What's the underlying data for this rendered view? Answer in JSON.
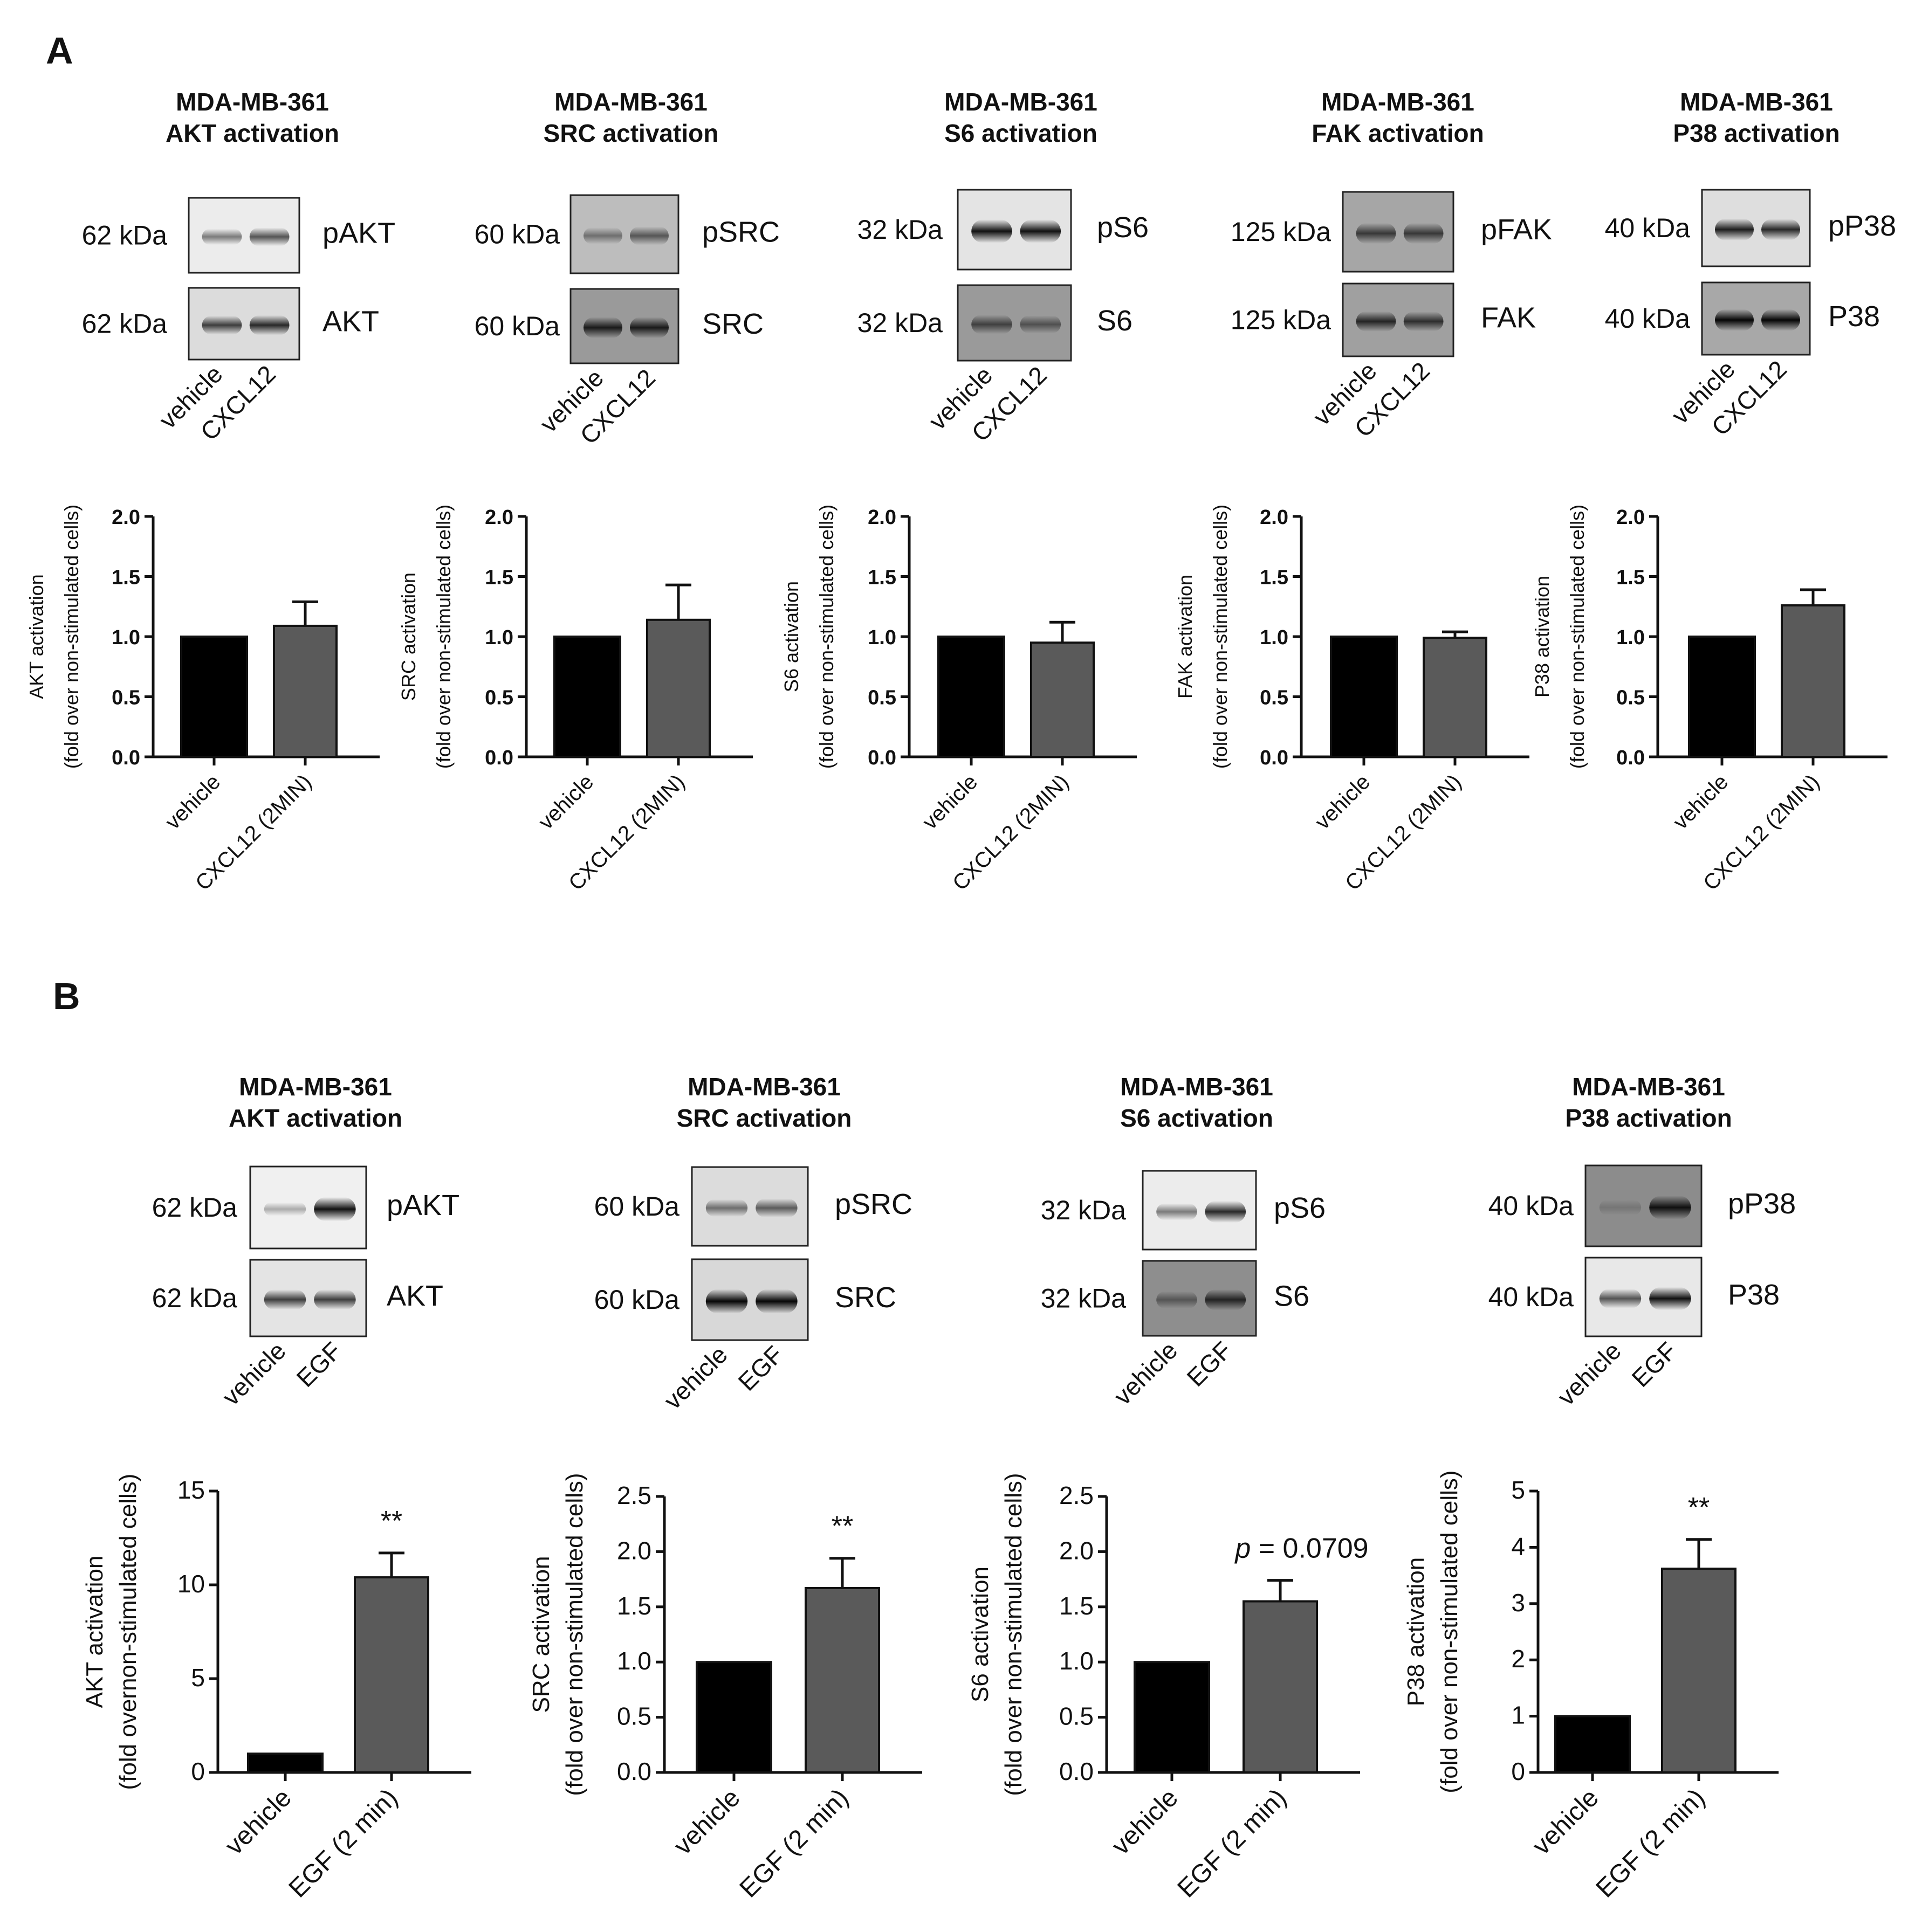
{
  "panels": [
    {
      "label": "A",
      "blots": [
        {
          "title_line1": "MDA-MB-361",
          "title_line2": "AKT activation",
          "top_kda": "62 kDa",
          "top_protein": "pAKT",
          "bottom_kda": "62 kDa",
          "bottom_protein": "AKT",
          "lane_labels": [
            "vehicle",
            "CXCL12"
          ],
          "top_band_intensity": [
            0.45,
            0.65
          ],
          "bottom_band_intensity": [
            0.75,
            0.85
          ],
          "top_background": "#ececec",
          "bottom_background": "#dcdcdc"
        },
        {
          "title_line1": "MDA-MB-361",
          "title_line2": "SRC activation",
          "top_kda": "60 kDa",
          "top_protein": "pSRC",
          "bottom_kda": "60 kDa",
          "bottom_protein": "SRC",
          "lane_labels": [
            "vehicle",
            "CXCL12"
          ],
          "top_band_intensity": [
            0.45,
            0.6
          ],
          "bottom_band_intensity": [
            0.9,
            0.9
          ],
          "top_background": "#bdbdbd",
          "bottom_background": "#9a9a9a"
        },
        {
          "title_line1": "MDA-MB-361",
          "title_line2": "S6 activation",
          "top_kda": "32 kDa",
          "top_protein": "pS6",
          "bottom_kda": "32 kDa",
          "bottom_protein": "S6",
          "lane_labels": [
            "vehicle",
            "CXCL12"
          ],
          "top_band_intensity": [
            0.95,
            0.95
          ],
          "bottom_band_intensity": [
            0.7,
            0.6
          ],
          "top_background": "#e4e4e4",
          "bottom_background": "#9a9a9a"
        },
        {
          "title_line1": "MDA-MB-361",
          "title_line2": "FAK activation",
          "top_kda": "125 kDa",
          "top_protein": "pFAK",
          "bottom_kda": "125 kDa",
          "bottom_protein": "FAK",
          "lane_labels": [
            "vehicle",
            "CXCL12"
          ],
          "top_band_intensity": [
            0.75,
            0.75
          ],
          "bottom_band_intensity": [
            0.85,
            0.8
          ],
          "top_background": "#a6a6a6",
          "bottom_background": "#a0a0a0"
        },
        {
          "title_line1": "MDA-MB-361",
          "title_line2": "P38 activation",
          "top_kda": "40 kDa",
          "top_protein": "pP38",
          "bottom_kda": "40 kDa",
          "bottom_protein": "P38",
          "lane_labels": [
            "vehicle",
            "CXCL12"
          ],
          "top_band_intensity": [
            0.9,
            0.85
          ],
          "bottom_band_intensity": [
            1.0,
            1.0
          ],
          "top_background": "#dedede",
          "bottom_background": "#a8a8a8"
        }
      ]
    },
    {
      "label": "B",
      "blots": [
        {
          "title_line1": "MDA-MB-361",
          "title_line2": "AKT activation",
          "top_kda": "62 kDa",
          "top_protein": "pAKT",
          "bottom_kda": "62 kDa",
          "bottom_protein": "AKT",
          "lane_labels": [
            "vehicle",
            "EGF"
          ],
          "top_band_intensity": [
            0.15,
            0.95
          ],
          "bottom_band_intensity": [
            0.75,
            0.75
          ],
          "top_background": "#f0f0f0",
          "bottom_background": "#e4e4e4"
        },
        {
          "title_line1": "MDA-MB-361",
          "title_line2": "SRC activation",
          "top_kda": "60 kDa",
          "top_protein": "pSRC",
          "bottom_kda": "60 kDa",
          "bottom_protein": "SRC",
          "lane_labels": [
            "vehicle",
            "EGF"
          ],
          "top_band_intensity": [
            0.5,
            0.6
          ],
          "bottom_band_intensity": [
            1.0,
            1.0
          ],
          "top_background": "#dcdcdc",
          "bottom_background": "#d8d8d8"
        },
        {
          "title_line1": "MDA-MB-361",
          "title_line2": "S6 activation",
          "top_kda": "32 kDa",
          "top_protein": "pS6",
          "bottom_kda": "32 kDa",
          "bottom_protein": "S6",
          "lane_labels": [
            "vehicle",
            "EGF"
          ],
          "top_band_intensity": [
            0.45,
            0.85
          ],
          "bottom_band_intensity": [
            0.55,
            0.85
          ],
          "top_background": "#ececec",
          "bottom_background": "#8e8e8e"
        },
        {
          "title_line1": "MDA-MB-361",
          "title_line2": "P38 activation",
          "top_kda": "40 kDa",
          "top_protein": "pP38",
          "bottom_kda": "40 kDa",
          "bottom_protein": "P38",
          "lane_labels": [
            "vehicle",
            "EGF"
          ],
          "top_band_intensity": [
            0.3,
            0.95
          ],
          "bottom_band_intensity": [
            0.65,
            0.95
          ],
          "top_background": "#8c8c8c",
          "bottom_background": "#e8e8e8"
        }
      ]
    }
  ],
  "chart_data": [
    {
      "type": "bar",
      "panel": "A",
      "categories": [
        "vehicle",
        "CXCL12 (2MIN)"
      ],
      "values": [
        1.0,
        1.09
      ],
      "errors": [
        0,
        0.2
      ],
      "ylim": [
        0,
        2.0
      ],
      "yticks": [
        "0.0",
        "0.5",
        "1.0",
        "1.5",
        "2.0"
      ],
      "ylabel_line1": "AKT activation",
      "ylabel_line2": "(fold over non-stimulated cells)",
      "annotation": "",
      "bar_colors": [
        "#000000",
        "#5a5a5a"
      ]
    },
    {
      "type": "bar",
      "panel": "A",
      "categories": [
        "vehicle",
        "CXCL12 (2MIN)"
      ],
      "values": [
        1.0,
        1.14
      ],
      "errors": [
        0,
        0.29
      ],
      "ylim": [
        0,
        2.0
      ],
      "yticks": [
        "0.0",
        "0.5",
        "1.0",
        "1.5",
        "2.0"
      ],
      "ylabel_line1": "SRC activation",
      "ylabel_line2": "(fold over non-stimulated cells)",
      "annotation": "",
      "bar_colors": [
        "#000000",
        "#5a5a5a"
      ]
    },
    {
      "type": "bar",
      "panel": "A",
      "categories": [
        "vehicle",
        "CXCL12 (2MIN)"
      ],
      "values": [
        1.0,
        0.95
      ],
      "errors": [
        0,
        0.17
      ],
      "ylim": [
        0,
        2.0
      ],
      "yticks": [
        "0.0",
        "0.5",
        "1.0",
        "1.5",
        "2.0"
      ],
      "ylabel_line1": "S6 activation",
      "ylabel_line2": "(fold over non-stimulated cells)",
      "annotation": "",
      "bar_colors": [
        "#000000",
        "#5a5a5a"
      ]
    },
    {
      "type": "bar",
      "panel": "A",
      "categories": [
        "vehicle",
        "CXCL12 (2MIN)"
      ],
      "values": [
        1.0,
        0.99
      ],
      "errors": [
        0,
        0.05
      ],
      "ylim": [
        0,
        2.0
      ],
      "yticks": [
        "0.0",
        "0.5",
        "1.0",
        "1.5",
        "2.0"
      ],
      "ylabel_line1": "FAK activation",
      "ylabel_line2": "(fold over non-stimulated cells)",
      "annotation": "",
      "bar_colors": [
        "#000000",
        "#5a5a5a"
      ]
    },
    {
      "type": "bar",
      "panel": "A",
      "categories": [
        "vehicle",
        "CXCL12 (2MIN)"
      ],
      "values": [
        1.0,
        1.26
      ],
      "errors": [
        0,
        0.13
      ],
      "ylim": [
        0,
        2.0
      ],
      "yticks": [
        "0.0",
        "0.5",
        "1.0",
        "1.5",
        "2.0"
      ],
      "ylabel_line1": "P38 activation",
      "ylabel_line2": "(fold over non-stimulated cells)",
      "annotation": "",
      "bar_colors": [
        "#000000",
        "#5a5a5a"
      ]
    },
    {
      "type": "bar",
      "panel": "B",
      "categories": [
        "vehicle",
        "EGF (2 min)"
      ],
      "values": [
        1.0,
        10.4
      ],
      "errors": [
        0,
        1.3
      ],
      "ylim": [
        0,
        15
      ],
      "yticks": [
        "0",
        "5",
        "10",
        "15"
      ],
      "ylabel_line1": "AKT activation",
      "ylabel_line2": "(fold overnon-stimulated cells)",
      "annotation": "**",
      "bar_colors": [
        "#000000",
        "#5a5a5a"
      ]
    },
    {
      "type": "bar",
      "panel": "B",
      "categories": [
        "vehicle",
        "EGF (2 min)"
      ],
      "values": [
        1.0,
        1.67
      ],
      "errors": [
        0,
        0.27
      ],
      "ylim": [
        0,
        2.5
      ],
      "yticks": [
        "0.0",
        "0.5",
        "1.0",
        "1.5",
        "2.0",
        "2.5"
      ],
      "ylabel_line1": "SRC activation",
      "ylabel_line2": "(fold over non-stimulated cells)",
      "annotation": "**",
      "bar_colors": [
        "#000000",
        "#5a5a5a"
      ]
    },
    {
      "type": "bar",
      "panel": "B",
      "categories": [
        "vehicle",
        "EGF (2 min)"
      ],
      "values": [
        1.0,
        1.55
      ],
      "errors": [
        0,
        0.19
      ],
      "ylim": [
        0,
        2.5
      ],
      "yticks": [
        "0.0",
        "0.5",
        "1.0",
        "1.5",
        "2.0",
        "2.5"
      ],
      "ylabel_line1": "S6 activation",
      "ylabel_line2": "(fold over non-stimulated cells)",
      "annotation": "p = 0.0709",
      "bar_colors": [
        "#000000",
        "#5a5a5a"
      ]
    },
    {
      "type": "bar",
      "panel": "B",
      "categories": [
        "vehicle",
        "EGF (2 min)"
      ],
      "values": [
        1.0,
        3.62
      ],
      "errors": [
        0,
        0.52
      ],
      "ylim": [
        0,
        5
      ],
      "yticks": [
        "0",
        "1",
        "2",
        "3",
        "4",
        "5"
      ],
      "ylabel_line1": "P38 activation",
      "ylabel_line2": "(fold over non-stimulated cells)",
      "annotation": "**",
      "bar_colors": [
        "#000000",
        "#5a5a5a"
      ]
    }
  ]
}
